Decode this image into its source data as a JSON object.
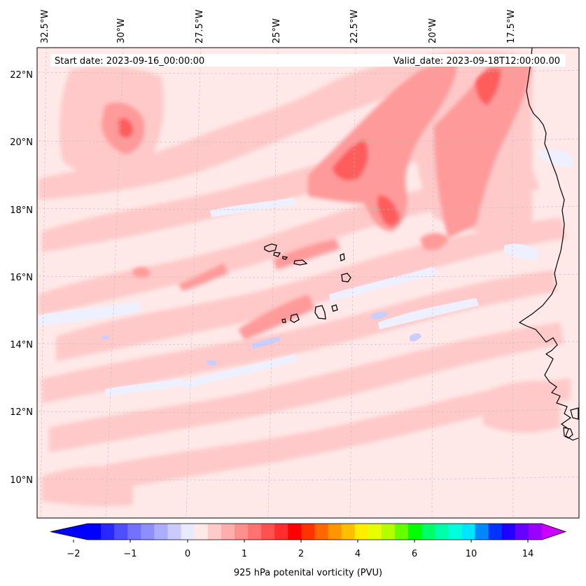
{
  "map": {
    "start_date": "Start date: 2023-09-16_00:00:00",
    "valid_date": "Valid_date: 2023-09-18T12:00:00.00",
    "lon_labels": [
      "32.5°W",
      "30°W",
      "27.5°W",
      "25°W",
      "22.5°W",
      "20°W",
      "17.5°W"
    ],
    "lat_labels": [
      "22°N",
      "20°N",
      "18°N",
      "16°N",
      "14°N",
      "12°N",
      "10°N"
    ],
    "field": "925 hPa potential vorticity",
    "region": "Cabo Verde / West African coast",
    "colors": {
      "background": "#ffe8e8",
      "light_red": "#ffc9c9",
      "mid_red": "#ff9a9a",
      "dark_red": "#ff5c5c",
      "light_blue": "#eef0ff",
      "mid_blue": "#c9ceff",
      "coastline": "#000000"
    }
  },
  "colorbar": {
    "tick_labels": [
      "−2",
      "−1",
      "0",
      "1",
      "2",
      "4",
      "6",
      "10",
      "14"
    ],
    "title": "925 hPa potenital vorticity (PVU)",
    "colors": [
      "#0000ff",
      "#2828ff",
      "#4f4fff",
      "#7272ff",
      "#8e8eff",
      "#adadff",
      "#cacaff",
      "#eaeaff",
      "#ffe8e8",
      "#ffcaca",
      "#ffadad",
      "#ff8e8e",
      "#ff7272",
      "#ff5050",
      "#ff2d2d",
      "#ff0000",
      "#ff3300",
      "#ff6600",
      "#ff9500",
      "#ffbf00",
      "#ffee00",
      "#e6ff00",
      "#b3ff00",
      "#66ff00",
      "#00ff00",
      "#00ff66",
      "#00ffaa",
      "#00ffdd",
      "#00e5ff",
      "#0088ff",
      "#0033ff",
      "#2200ff",
      "#6600ff",
      "#9900ff"
    ],
    "extend_low_color": "#0000ff",
    "extend_high_color": "#cc00ff"
  }
}
